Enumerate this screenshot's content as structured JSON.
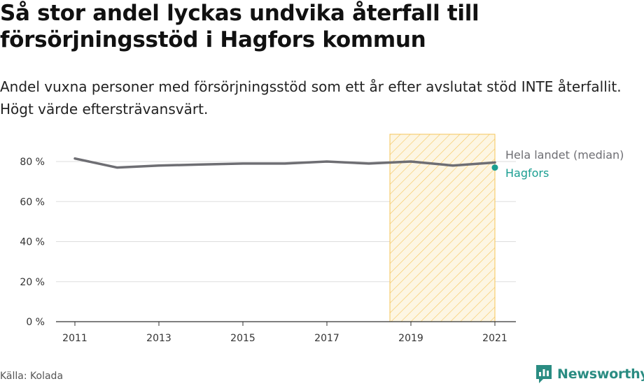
{
  "title": "Så stor andel lyckas undvika återfall till försörjningsstöd i Hagfors kommun",
  "subtitle": "Andel vuxna personer med försörjningsstöd som ett år efter avslutat stöd INTE återfallit. Högt värde eftersträvansvärt.",
  "source": "Källa: Kolada",
  "brand": "Newsworthy",
  "colors": {
    "national": "#6e6e73",
    "hagfors": "#1a9e91",
    "highlight_stroke": "#f5c55a",
    "grid": "#dddddd",
    "brand": "#2a8c82"
  },
  "chart_data": {
    "type": "line",
    "x": [
      2011,
      2012,
      2013,
      2014,
      2015,
      2016,
      2017,
      2018,
      2019,
      2020,
      2021
    ],
    "series": [
      {
        "name": "Hela landet (median)",
        "values": [
          81.5,
          77,
          78,
          78.5,
          79,
          79,
          80,
          79,
          80,
          78,
          79.5
        ]
      },
      {
        "name": "Hagfors",
        "values": [
          null,
          null,
          null,
          null,
          null,
          null,
          null,
          null,
          null,
          null,
          77
        ]
      }
    ],
    "ylim": [
      0,
      80
    ],
    "yticks": [
      "0 %",
      "20 %",
      "40 %",
      "60 %",
      "80 %"
    ],
    "ytick_values": [
      0,
      20,
      40,
      60,
      80
    ],
    "xticks": [
      "2011",
      "2013",
      "2015",
      "2017",
      "2019",
      "2021"
    ],
    "xtick_values": [
      2011,
      2013,
      2015,
      2017,
      2019,
      2021
    ],
    "highlight_range": [
      2018.5,
      2021
    ],
    "xlabel": "",
    "ylabel": "",
    "grid": true
  }
}
